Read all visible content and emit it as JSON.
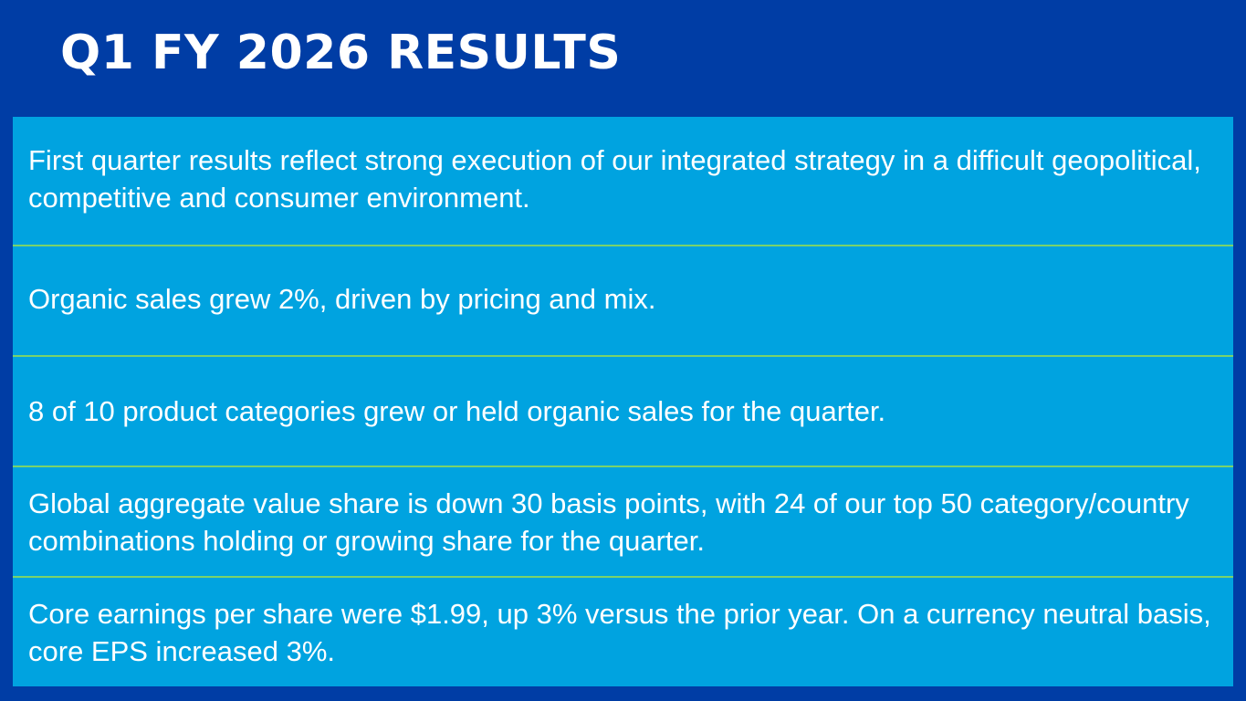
{
  "title": "Q1 FY 2026 RESULTS",
  "colors": {
    "background": "#003da5",
    "panel": "#00a3e0",
    "divider": "#7ad36b",
    "text": "#ffffff"
  },
  "items": [
    {
      "text": "First quarter results reflect strong execution of our integrated strategy in a difficult geopolitical, competitive and consumer environment."
    },
    {
      "text": "Organic sales grew 2%, driven by pricing and mix."
    },
    {
      "text": "8 of 10 product categories grew or held organic sales for the quarter."
    },
    {
      "text": "Global aggregate value share is down 30 basis points, with 24 of our top 50 category/country combinations holding or growing share for the quarter."
    },
    {
      "text": "Core earnings per share were $1.99, up 3% versus the prior year. On a currency neutral basis, core EPS increased 3%."
    }
  ]
}
